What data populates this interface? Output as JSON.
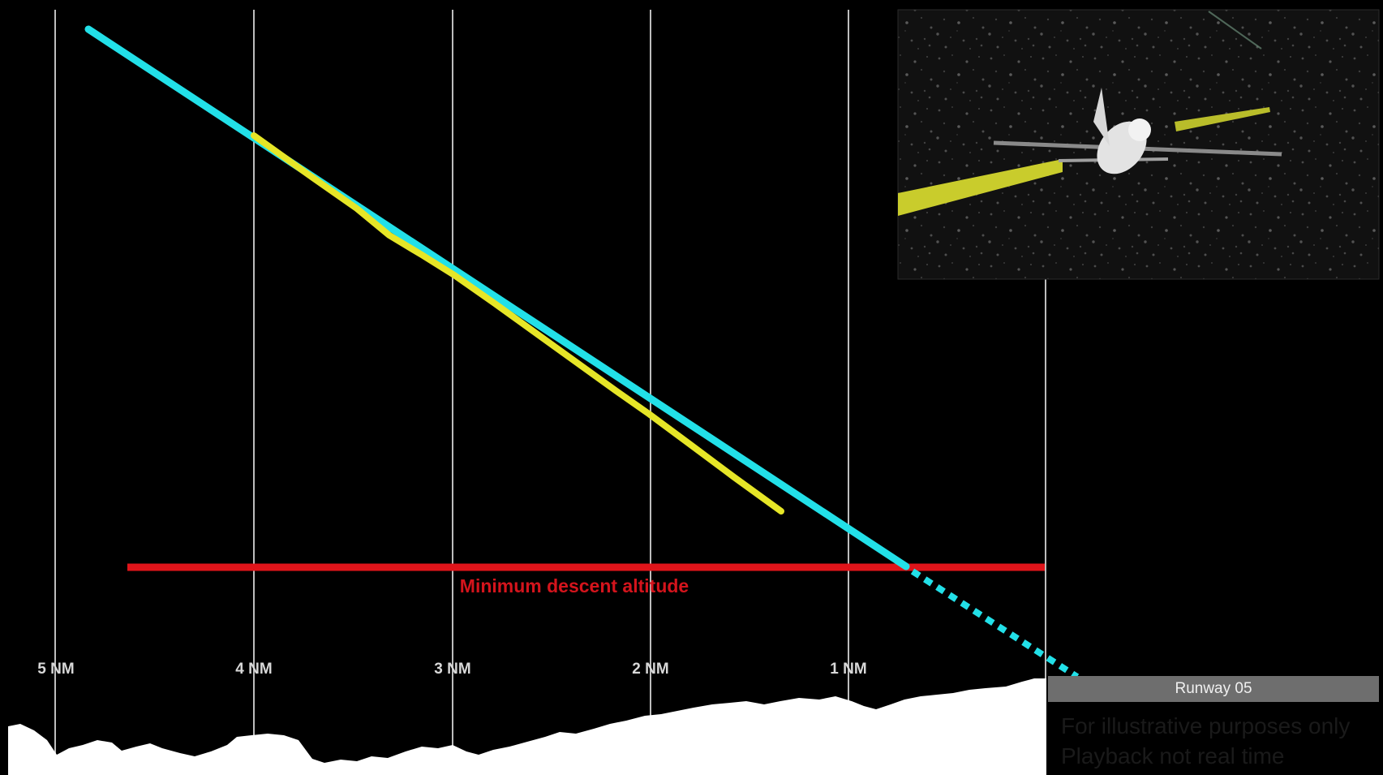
{
  "distance_markers": [
    "5 NM",
    "4 NM",
    "3 NM",
    "2 NM",
    "1 NM"
  ],
  "mda_label": "Minimum descent altitude",
  "runway_label": "Runway 05",
  "disclaimer": {
    "line1": "For illustrative purposes only",
    "line2": "Playback not real time"
  },
  "colors": {
    "background": "#000000",
    "gridlines": "#bdbdbd",
    "planned_path": "#22e0e8",
    "actual_path": "#e6e627",
    "mda_line": "#e0141a",
    "terrain": "#ffffff",
    "runway_bar": "#6e6e6e"
  },
  "inset": {
    "description_icon": "aircraft-icon",
    "scene": "night"
  }
}
